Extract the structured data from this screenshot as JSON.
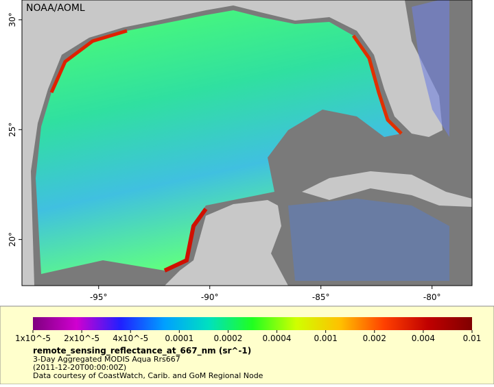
{
  "title": "NOAA/AOML",
  "map": {
    "xlim": [
      -98.45,
      -78.2
    ],
    "ylim": [
      17.9,
      30.9
    ],
    "xticks": [
      {
        "value": -95,
        "label": "-95°"
      },
      {
        "value": -90,
        "label": "-90°"
      },
      {
        "value": -85,
        "label": "-85°"
      },
      {
        "value": -80,
        "label": "-80°"
      }
    ],
    "yticks": [
      {
        "value": 20,
        "label": "20°"
      },
      {
        "value": 25,
        "label": "25°"
      },
      {
        "value": 30,
        "label": "30°"
      }
    ]
  },
  "colorbar": {
    "scale": "log",
    "colors": [
      "#7f007f",
      "#d000d0",
      "#2020ff",
      "#00a0ff",
      "#00e0c0",
      "#20ff20",
      "#d0ff00",
      "#ffc000",
      "#ff4000",
      "#c00000",
      "#800000"
    ],
    "ticks": [
      {
        "value": 1e-05,
        "label": "1x10^-5"
      },
      {
        "value": 2e-05,
        "label": "2x10^-5"
      },
      {
        "value": 4e-05,
        "label": "4x10^-5"
      },
      0.0001,
      0.0002,
      0.0004,
      0.001,
      0.002,
      0.004,
      0.01
    ]
  },
  "legend": {
    "variable": "remote_sensing_reflectance_at_667_nm (sr^-1)",
    "description": "3-Day Aggregated MODIS Aqua Rrs667",
    "time": "(2011-12-20T00:00:00Z)",
    "credit": "Data courtesy of CoastWatch, Carib. and GoM Regional Node"
  }
}
